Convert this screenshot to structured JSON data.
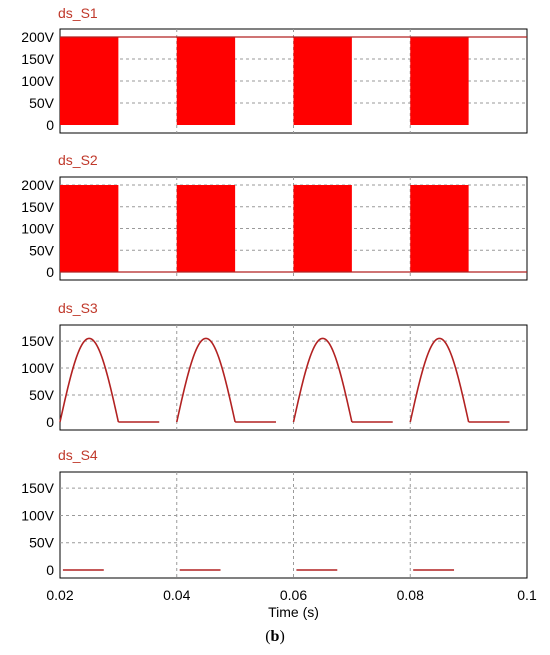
{
  "figure": {
    "caption_open": "(",
    "caption_bold": "b",
    "caption_close": ")"
  },
  "chart_data": [
    {
      "type": "area",
      "title": "ds_S1",
      "xlim": [
        0.02,
        0.1
      ],
      "ylim": [
        0,
        200
      ],
      "yticks": [
        0,
        50,
        100,
        150,
        200
      ],
      "ytick_labels": [
        "0",
        "50V",
        "100V",
        "150V",
        "200V"
      ],
      "grid": true,
      "series": [
        {
          "values": {
            "x": [
              0.02,
              0.02001,
              0.02999,
              0.03,
              0.04,
              0.04001,
              0.04999,
              0.05,
              0.06,
              0.06001,
              0.06999,
              0.07,
              0.08,
              0.08001,
              0.08999,
              0.09,
              0.1
            ],
            "y": [
              200,
              0,
              0,
              200,
              200,
              0,
              0,
              200,
              200,
              0,
              0,
              200,
              200,
              0,
              0,
              200,
              200
            ]
          },
          "band": "pwm",
          "color": "#ff0000"
        }
      ],
      "pwm_on_intervals": [
        [
          0.02,
          0.03
        ],
        [
          0.04,
          0.05
        ],
        [
          0.06,
          0.07
        ],
        [
          0.08,
          0.09
        ]
      ],
      "pwm_high": 200,
      "pwm_low": 0
    },
    {
      "type": "area",
      "title": "ds_S2",
      "xlim": [
        0.02,
        0.1
      ],
      "ylim": [
        0,
        200
      ],
      "yticks": [
        0,
        50,
        100,
        150,
        200
      ],
      "ytick_labels": [
        "0",
        "50V",
        "100V",
        "150V",
        "200V"
      ],
      "grid": true,
      "pwm_on_intervals": [
        [
          0.02,
          0.03
        ],
        [
          0.04,
          0.05
        ],
        [
          0.06,
          0.07
        ],
        [
          0.08,
          0.09
        ]
      ],
      "pwm_high": 200,
      "pwm_low": 0,
      "off_level": 0
    },
    {
      "type": "line",
      "title": "ds_S3",
      "xlim": [
        0.02,
        0.1
      ],
      "ylim": [
        0,
        165
      ],
      "yticks": [
        0,
        50,
        100,
        150
      ],
      "ytick_labels": [
        "0",
        "50V",
        "100V",
        "150V"
      ],
      "grid": true,
      "half_sine_peak": 155,
      "half_sine_intervals": [
        [
          0.02,
          0.03
        ],
        [
          0.04,
          0.05
        ],
        [
          0.06,
          0.07
        ],
        [
          0.08,
          0.09
        ]
      ],
      "color": "#b22222"
    },
    {
      "type": "line",
      "title": "ds_S4",
      "xlim": [
        0.02,
        0.1
      ],
      "ylim": [
        0,
        165
      ],
      "yticks": [
        0,
        50,
        100,
        150
      ],
      "ytick_labels": [
        "0",
        "50V",
        "100V",
        "150V"
      ],
      "xticks": [
        0.02,
        0.04,
        0.06,
        0.08,
        0.1
      ],
      "xtick_labels": [
        "0.02",
        "0.04",
        "0.06",
        "0.08",
        "0.1"
      ],
      "xlabel": "Time (s)",
      "grid": true,
      "low_segments": [
        [
          0.0205,
          0.0275
        ],
        [
          0.0405,
          0.0475
        ],
        [
          0.0605,
          0.0675
        ],
        [
          0.0805,
          0.0875
        ]
      ],
      "low_level": 0,
      "color": "#b22222"
    }
  ]
}
